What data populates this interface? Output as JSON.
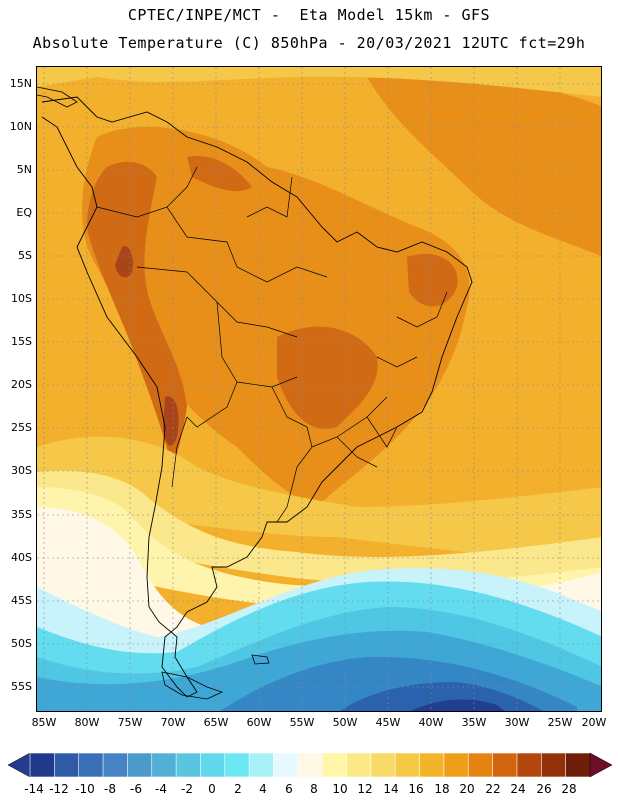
{
  "header": {
    "title_line1": "CPTEC/INPE/MCT -  Eta Model 15km - GFS",
    "title_line2": "Absolute Temperature (C) 850hPa - 20/03/2021 12UTC fct=29h"
  },
  "map": {
    "latitude_labels": [
      "15N",
      "10N",
      "5N",
      "EQ",
      "5S",
      "10S",
      "15S",
      "20S",
      "25S",
      "30S",
      "35S",
      "40S",
      "45S",
      "50S",
      "55S"
    ],
    "longitude_labels": [
      "85W",
      "80W",
      "75W",
      "70W",
      "65W",
      "60W",
      "55W",
      "50W",
      "45W",
      "40W",
      "35W",
      "30W",
      "25W",
      "20W"
    ]
  },
  "colorbar": {
    "labels": [
      "-14",
      "-12",
      "-10",
      "-8",
      "-6",
      "-4",
      "-2",
      "0",
      "2",
      "4",
      "6",
      "8",
      "10",
      "12",
      "14",
      "16",
      "18",
      "20",
      "22",
      "24",
      "26",
      "28"
    ],
    "colors": [
      "#1f3a8a",
      "#2e5aa8",
      "#3a6fb8",
      "#4583c4",
      "#4a9acc",
      "#52b0d6",
      "#5ac5e0",
      "#62d8ec",
      "#6ce8f2",
      "#a8f0f8",
      "#e6fafd",
      "#fff8e6",
      "#fff6a8",
      "#fbe886",
      "#f8da66",
      "#f5c845",
      "#f2b52a",
      "#ee9e18",
      "#e38412",
      "#d2650e",
      "#b4480c",
      "#94310a",
      "#6e1e08"
    ],
    "left_arrow_color": "#233c8e",
    "right_arrow_color": "#6a0f25"
  },
  "map_colors": {
    "ocean_background": "#f2b02d",
    "warm": "#e88f19",
    "hot": "#d06a14",
    "hottest": "#a9431a",
    "mild": "#f5c84a",
    "pale_yellow": "#fbe78c",
    "light_yellow": "#fff4ac",
    "cream": "#fff8e6",
    "ice": "#c8f3fa",
    "cyan": "#62dcee",
    "light_blue": "#4fc7e4",
    "mid_blue": "#3fa7d6",
    "blue": "#3486c4",
    "deep_blue": "#2a62ad",
    "darkest_blue": "#223f8e",
    "boundary": "#000000",
    "grid": "#8a8a8a"
  }
}
